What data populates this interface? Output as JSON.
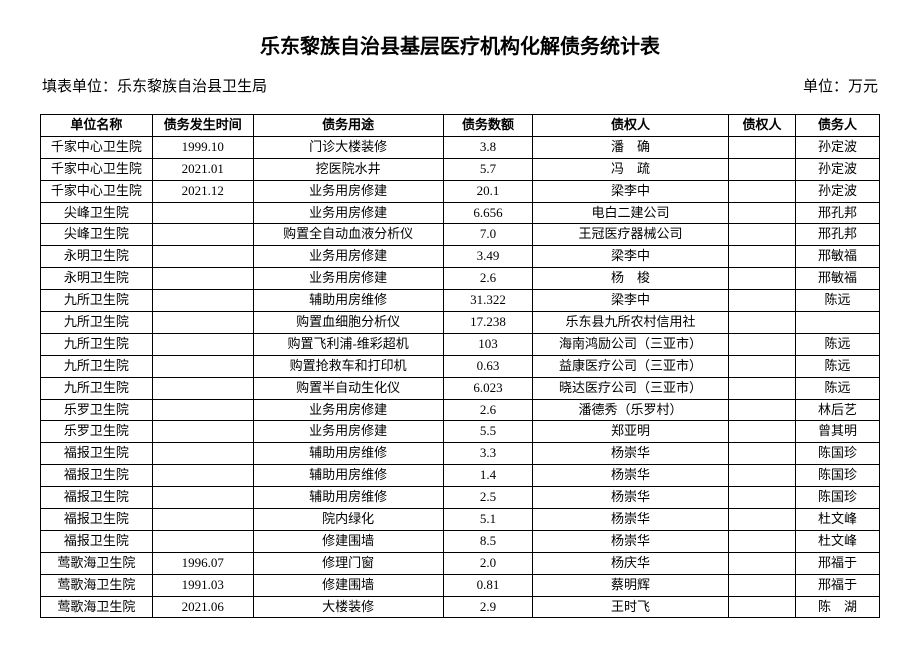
{
  "title": "乐东黎族自治县基层医疗机构化解债务统计表",
  "subtitle_left": "填表单位：乐东黎族自治县卫生局",
  "subtitle_right": "单位：万元",
  "table": {
    "columns": [
      "单位名称",
      "债务发生时间",
      "债务用途",
      "债务数额",
      "债权人",
      "债权人",
      "债务人"
    ],
    "col_classes": [
      "col-name",
      "col-date",
      "col-purpose",
      "col-amount",
      "col-creditor",
      "col-creditor2",
      "col-debtor"
    ],
    "rows": [
      [
        "千家中心卫生院",
        "1999.10",
        "门诊大楼装修",
        "3.8",
        "潘　确",
        "",
        "孙定波"
      ],
      [
        "千家中心卫生院",
        "2021.01",
        "挖医院水井",
        "5.7",
        "冯　疏",
        "",
        "孙定波"
      ],
      [
        "千家中心卫生院",
        "2021.12",
        "业务用房修建",
        "20.1",
        "梁李中",
        "",
        "孙定波"
      ],
      [
        "尖峰卫生院",
        "",
        "业务用房修建",
        "6.656",
        "电白二建公司",
        "",
        "邢孔邦"
      ],
      [
        "尖峰卫生院",
        "",
        "购置全自动血液分析仪",
        "7.0",
        "王冠医疗器械公司",
        "",
        "邢孔邦"
      ],
      [
        "永明卫生院",
        "",
        "业务用房修建",
        "3.49",
        "梁李中",
        "",
        "邢敏福"
      ],
      [
        "永明卫生院",
        "",
        "业务用房修建",
        "2.6",
        "杨　梭",
        "",
        "邢敏福"
      ],
      [
        "九所卫生院",
        "",
        "辅助用房维修",
        "31.322",
        "梁李中",
        "",
        "陈远"
      ],
      [
        "九所卫生院",
        "",
        "购置血细胞分析仪",
        "17.238",
        "乐东县九所农村信用社",
        "",
        ""
      ],
      [
        "九所卫生院",
        "",
        "购置飞利浦-维彩超机",
        "103",
        "海南鸿励公司（三亚市）",
        "",
        "陈远"
      ],
      [
        "九所卫生院",
        "",
        "购置抢救车和打印机",
        "0.63",
        "益康医疗公司（三亚市）",
        "",
        "陈远"
      ],
      [
        "九所卫生院",
        "",
        "购置半自动生化仪",
        "6.023",
        "晓达医疗公司（三亚市）",
        "",
        "陈远"
      ],
      [
        "乐罗卫生院",
        "",
        "业务用房修建",
        "2.6",
        "潘德秀（乐罗村）",
        "",
        "林后艺"
      ],
      [
        "乐罗卫生院",
        "",
        "业务用房修建",
        "5.5",
        "郑亚明",
        "",
        "曾其明"
      ],
      [
        "福报卫生院",
        "",
        "辅助用房维修",
        "3.3",
        "杨崇华",
        "",
        "陈国珍"
      ],
      [
        "福报卫生院",
        "",
        "辅助用房维修",
        "1.4",
        "杨崇华",
        "",
        "陈国珍"
      ],
      [
        "福报卫生院",
        "",
        "辅助用房维修",
        "2.5",
        "杨崇华",
        "",
        "陈国珍"
      ],
      [
        "福报卫生院",
        "",
        "院内绿化",
        "5.1",
        "杨崇华",
        "",
        "杜文峰"
      ],
      [
        "福报卫生院",
        "",
        "修建围墙",
        "8.5",
        "杨崇华",
        "",
        "杜文峰"
      ],
      [
        "莺歌海卫生院",
        "1996.07",
        "修理门窗",
        "2.0",
        "杨庆华",
        "",
        "邢福于"
      ],
      [
        "莺歌海卫生院",
        "1991.03",
        "修建围墙",
        "0.81",
        "蔡明辉",
        "",
        "邢福于"
      ],
      [
        "莺歌海卫生院",
        "2021.06",
        "大楼装修",
        "2.9",
        "王时飞",
        "",
        "陈　湖"
      ]
    ]
  },
  "styling": {
    "background_color": "#ffffff",
    "border_color": "#000000",
    "title_fontsize": 20,
    "subtitle_fontsize": 15,
    "table_fontsize": 13,
    "font_family": "SimSun"
  }
}
